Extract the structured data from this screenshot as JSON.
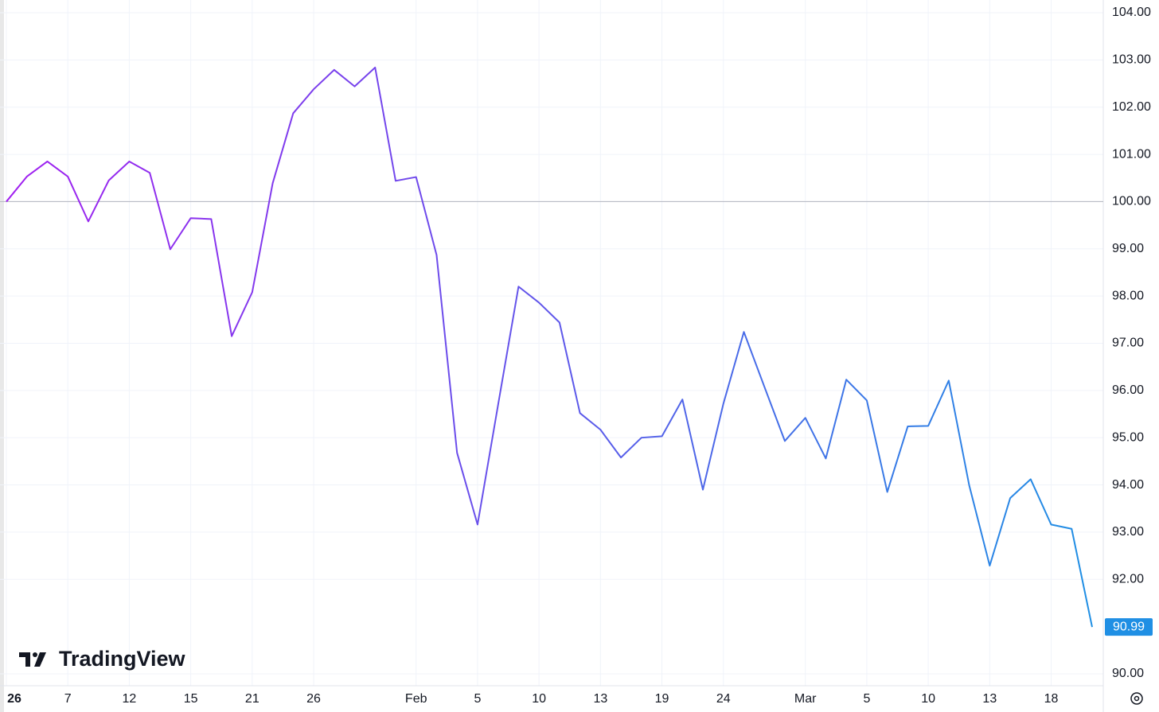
{
  "chart_data": {
    "type": "line",
    "watermark": "TradingView",
    "categories": [
      "26",
      null,
      null,
      "7",
      null,
      null,
      "12",
      null,
      null,
      "15",
      null,
      null,
      "21",
      null,
      null,
      "26",
      null,
      null,
      null,
      null,
      "Feb",
      null,
      null,
      "5",
      null,
      null,
      "10",
      null,
      null,
      "13",
      null,
      null,
      "19",
      null,
      null,
      "24",
      null,
      null,
      null,
      "Mar",
      null,
      null,
      "5",
      null,
      null,
      "10",
      null,
      null,
      "13",
      null,
      null,
      "18",
      null,
      null
    ],
    "series": [
      {
        "colors": [
          "#a11ff0",
          "#1f8fe4"
        ],
        "values": [
          100.0,
          100.53,
          100.85,
          100.53,
          99.58,
          100.45,
          100.85,
          100.61,
          98.99,
          99.65,
          99.63,
          97.15,
          98.08,
          100.39,
          101.87,
          102.38,
          102.79,
          102.44,
          102.84,
          100.44,
          100.52,
          98.87,
          94.68,
          93.16,
          95.69,
          98.2,
          97.86,
          97.44,
          95.52,
          95.17,
          94.58,
          95.0,
          95.03,
          95.81,
          93.9,
          95.72,
          97.24,
          96.08,
          94.93,
          95.42,
          94.56,
          96.23,
          95.79,
          93.85,
          95.24,
          95.25,
          96.21,
          93.99,
          92.29,
          93.72,
          94.12,
          93.16,
          93.07,
          90.99
        ]
      }
    ],
    "baseline": 100,
    "ylim": [
      89.78,
      104.27
    ],
    "yticks": [
      {
        "value": 90,
        "label": "90.00"
      },
      {
        "value": 92,
        "label": "92.00"
      },
      {
        "value": 93,
        "label": "93.00"
      },
      {
        "value": 94,
        "label": "94.00"
      },
      {
        "value": 95,
        "label": "95.00"
      },
      {
        "value": 96,
        "label": "96.00"
      },
      {
        "value": 97,
        "label": "97.00"
      },
      {
        "value": 98,
        "label": "98.00"
      },
      {
        "value": 99,
        "label": "99.00"
      },
      {
        "value": 100,
        "label": "100.00"
      },
      {
        "value": 101,
        "label": "101.00"
      },
      {
        "value": 102,
        "label": "102.00"
      },
      {
        "value": 103,
        "label": "103.00"
      },
      {
        "value": 104,
        "label": "104.00"
      }
    ],
    "grid": true
  }
}
